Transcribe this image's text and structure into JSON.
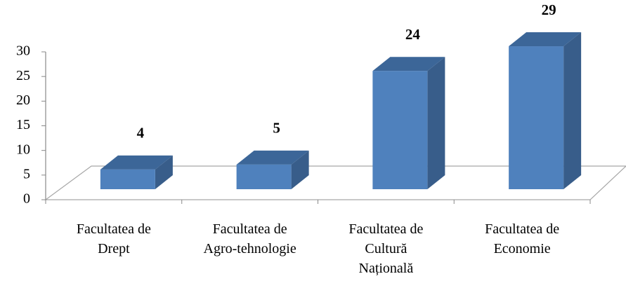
{
  "chart_data": {
    "type": "bar3d",
    "categories": [
      "Facultatea de\nDrept",
      "Facultatea de\nAgro-tehnologie",
      "Facultatea de\nCultură\nNațională",
      "Facultatea de\nEconomie"
    ],
    "values": [
      4,
      5,
      24,
      29
    ],
    "color": "#4f81bd",
    "ylim": [
      0,
      30
    ],
    "yticks": [
      0,
      5,
      10,
      15,
      20,
      25,
      30
    ]
  }
}
